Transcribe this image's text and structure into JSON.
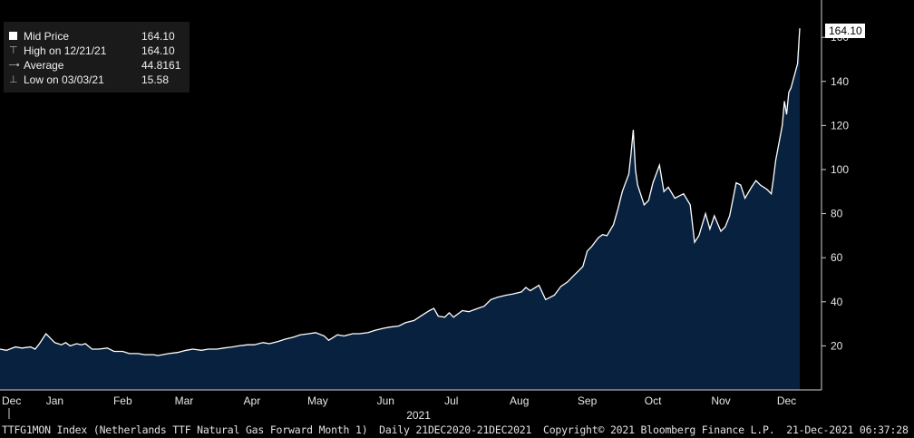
{
  "legend": {
    "items": [
      {
        "label": "Mid Price",
        "value": "164.10"
      },
      {
        "label": "High on 12/21/21",
        "value": "164.10"
      },
      {
        "label": "Average",
        "value": "44.8161"
      },
      {
        "label": "Low on 03/03/21",
        "value": "15.58"
      }
    ]
  },
  "last_value_label": "164.10",
  "footer": {
    "ticker": "TTFG1MON Index (Netherlands TTF Natural Gas Forward Month 1)",
    "range": "Daily 21DEC2020-21DEC2021",
    "copyright": "Copyright© 2021 Bloomberg Finance L.P.",
    "timestamp": "21-Dec-2021 06:37:28"
  },
  "colors": {
    "background": "#000000",
    "area_fill": "#08213f",
    "line": "#ffffff",
    "axis": "#d0d0d0"
  },
  "chart_data": {
    "type": "area",
    "title": "",
    "xlabel": "",
    "ylabel": "",
    "ylim": [
      0,
      172
    ],
    "x_range": [
      "2020-12-21",
      "2021-12-21"
    ],
    "y_ticks": [
      20,
      40,
      60,
      80,
      100,
      120,
      140,
      160
    ],
    "x_month_labels": [
      {
        "label": "Dec",
        "date": "2020-12-21"
      },
      {
        "label": "Jan",
        "date": "2021-01-15"
      },
      {
        "label": "Feb",
        "date": "2021-02-15"
      },
      {
        "label": "Mar",
        "date": "2021-03-15"
      },
      {
        "label": "Apr",
        "date": "2021-04-15"
      },
      {
        "label": "May",
        "date": "2021-05-15"
      },
      {
        "label": "Jun",
        "date": "2021-06-15"
      },
      {
        "label": "Jul",
        "date": "2021-07-15"
      },
      {
        "label": "Aug",
        "date": "2021-08-15"
      },
      {
        "label": "Sep",
        "date": "2021-09-15"
      },
      {
        "label": "Oct",
        "date": "2021-10-15"
      },
      {
        "label": "Nov",
        "date": "2021-11-15"
      },
      {
        "label": "Dec",
        "date": "2021-12-15"
      }
    ],
    "year_label": {
      "label": "2021",
      "date": "2021-06-30"
    },
    "grid": false,
    "legend_position": "top-left",
    "series": [
      {
        "name": "Mid Price",
        "points": [
          [
            "2020-12-21",
            18.5
          ],
          [
            "2020-12-24",
            18.0
          ],
          [
            "2020-12-28",
            19.5
          ],
          [
            "2020-12-31",
            19.0
          ],
          [
            "2021-01-04",
            19.5
          ],
          [
            "2021-01-06",
            18.5
          ],
          [
            "2021-01-08",
            21.0
          ],
          [
            "2021-01-11",
            25.5
          ],
          [
            "2021-01-13",
            23.5
          ],
          [
            "2021-01-15",
            21.5
          ],
          [
            "2021-01-18",
            20.5
          ],
          [
            "2021-01-20",
            21.5
          ],
          [
            "2021-01-22",
            20.0
          ],
          [
            "2021-01-25",
            21.0
          ],
          [
            "2021-01-27",
            20.5
          ],
          [
            "2021-01-29",
            21.0
          ],
          [
            "2021-02-01",
            18.5
          ],
          [
            "2021-02-04",
            18.5
          ],
          [
            "2021-02-08",
            19.0
          ],
          [
            "2021-02-11",
            17.5
          ],
          [
            "2021-02-15",
            17.5
          ],
          [
            "2021-02-18",
            16.5
          ],
          [
            "2021-02-22",
            16.5
          ],
          [
            "2021-02-25",
            16.0
          ],
          [
            "2021-03-01",
            16.0
          ],
          [
            "2021-03-03",
            15.6
          ],
          [
            "2021-03-08",
            16.5
          ],
          [
            "2021-03-12",
            17.0
          ],
          [
            "2021-03-16",
            18.0
          ],
          [
            "2021-03-19",
            18.5
          ],
          [
            "2021-03-23",
            18.0
          ],
          [
            "2021-03-26",
            18.5
          ],
          [
            "2021-03-30",
            18.5
          ],
          [
            "2021-04-02",
            19.0
          ],
          [
            "2021-04-06",
            19.5
          ],
          [
            "2021-04-09",
            20.0
          ],
          [
            "2021-04-13",
            20.5
          ],
          [
            "2021-04-16",
            20.5
          ],
          [
            "2021-04-20",
            21.5
          ],
          [
            "2021-04-23",
            21.0
          ],
          [
            "2021-04-27",
            22.0
          ],
          [
            "2021-04-30",
            23.0
          ],
          [
            "2021-05-04",
            24.0
          ],
          [
            "2021-05-07",
            25.0
          ],
          [
            "2021-05-11",
            25.5
          ],
          [
            "2021-05-14",
            26.0
          ],
          [
            "2021-05-18",
            24.5
          ],
          [
            "2021-05-20",
            22.5
          ],
          [
            "2021-05-24",
            25.0
          ],
          [
            "2021-05-27",
            24.5
          ],
          [
            "2021-05-31",
            25.5
          ],
          [
            "2021-06-03",
            25.5
          ],
          [
            "2021-06-07",
            26.0
          ],
          [
            "2021-06-10",
            27.0
          ],
          [
            "2021-06-14",
            28.0
          ],
          [
            "2021-06-17",
            28.5
          ],
          [
            "2021-06-21",
            29.0
          ],
          [
            "2021-06-24",
            30.5
          ],
          [
            "2021-06-28",
            31.5
          ],
          [
            "2021-07-01",
            33.5
          ],
          [
            "2021-07-05",
            36.0
          ],
          [
            "2021-07-07",
            37.0
          ],
          [
            "2021-07-09",
            33.5
          ],
          [
            "2021-07-12",
            33.0
          ],
          [
            "2021-07-14",
            35.0
          ],
          [
            "2021-07-16",
            33.0
          ],
          [
            "2021-07-20",
            36.0
          ],
          [
            "2021-07-23",
            35.5
          ],
          [
            "2021-07-27",
            37.0
          ],
          [
            "2021-07-30",
            38.0
          ],
          [
            "2021-08-02",
            41.0
          ],
          [
            "2021-08-05",
            42.0
          ],
          [
            "2021-08-09",
            43.0
          ],
          [
            "2021-08-12",
            43.5
          ],
          [
            "2021-08-16",
            44.5
          ],
          [
            "2021-08-18",
            46.5
          ],
          [
            "2021-08-20",
            45.0
          ],
          [
            "2021-08-24",
            47.5
          ],
          [
            "2021-08-27",
            41.0
          ],
          [
            "2021-08-31",
            43.0
          ],
          [
            "2021-09-03",
            47.0
          ],
          [
            "2021-09-06",
            49.0
          ],
          [
            "2021-09-09",
            52.0
          ],
          [
            "2021-09-13",
            56.0
          ],
          [
            "2021-09-15",
            63.0
          ],
          [
            "2021-09-17",
            65.0
          ],
          [
            "2021-09-20",
            69.0
          ],
          [
            "2021-09-22",
            70.5
          ],
          [
            "2021-09-24",
            70.0
          ],
          [
            "2021-09-27",
            75.0
          ],
          [
            "2021-09-29",
            82.0
          ],
          [
            "2021-10-01",
            90.0
          ],
          [
            "2021-10-04",
            98.0
          ],
          [
            "2021-10-05",
            107.0
          ],
          [
            "2021-10-06",
            118.0
          ],
          [
            "2021-10-07",
            100.0
          ],
          [
            "2021-10-08",
            93.0
          ],
          [
            "2021-10-11",
            84.0
          ],
          [
            "2021-10-13",
            86.0
          ],
          [
            "2021-10-15",
            94.0
          ],
          [
            "2021-10-18",
            102.0
          ],
          [
            "2021-10-20",
            90.0
          ],
          [
            "2021-10-22",
            92.0
          ],
          [
            "2021-10-25",
            87.0
          ],
          [
            "2021-10-27",
            88.0
          ],
          [
            "2021-10-29",
            89.0
          ],
          [
            "2021-11-01",
            84.0
          ],
          [
            "2021-11-03",
            67.0
          ],
          [
            "2021-11-05",
            70.0
          ],
          [
            "2021-11-08",
            80.0
          ],
          [
            "2021-11-10",
            73.0
          ],
          [
            "2021-11-12",
            79.0
          ],
          [
            "2021-11-15",
            72.0
          ],
          [
            "2021-11-17",
            74.0
          ],
          [
            "2021-11-19",
            79.0
          ],
          [
            "2021-11-22",
            94.0
          ],
          [
            "2021-11-24",
            93.0
          ],
          [
            "2021-11-26",
            87.0
          ],
          [
            "2021-11-29",
            92.0
          ],
          [
            "2021-12-01",
            95.0
          ],
          [
            "2021-12-03",
            93.0
          ],
          [
            "2021-12-06",
            91.0
          ],
          [
            "2021-12-08",
            89.0
          ],
          [
            "2021-12-09",
            96.0
          ],
          [
            "2021-12-10",
            104.0
          ],
          [
            "2021-12-13",
            120.0
          ],
          [
            "2021-12-14",
            131.0
          ],
          [
            "2021-12-15",
            125.0
          ],
          [
            "2021-12-16",
            135.0
          ],
          [
            "2021-12-17",
            137.0
          ],
          [
            "2021-12-20",
            148.0
          ],
          [
            "2021-12-21",
            164.1
          ]
        ]
      }
    ]
  }
}
